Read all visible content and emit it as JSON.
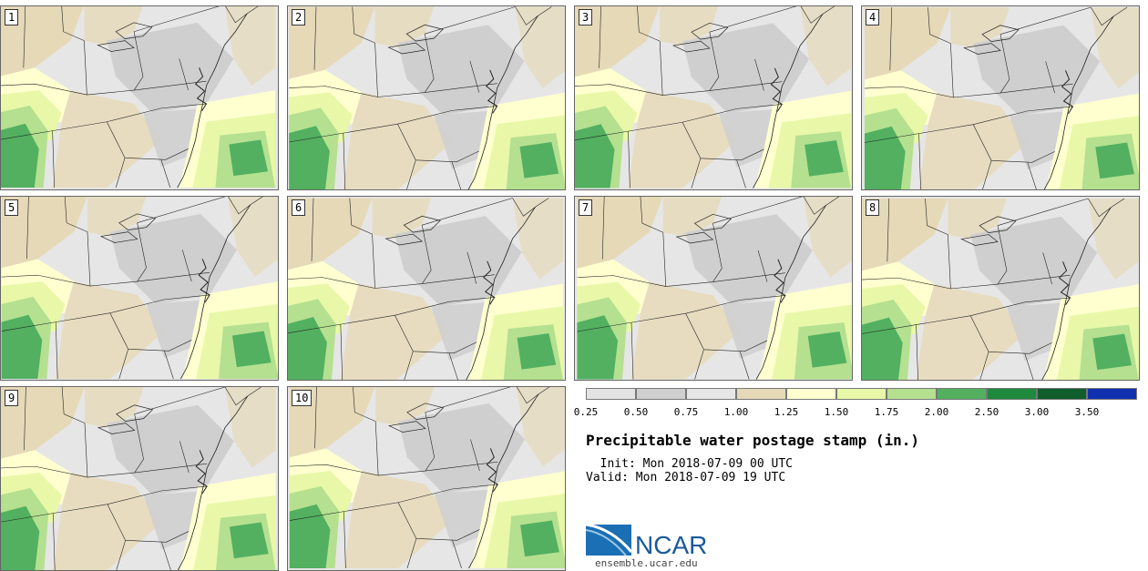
{
  "panels": [
    {
      "label": "1"
    },
    {
      "label": "2"
    },
    {
      "label": "3"
    },
    {
      "label": "4"
    },
    {
      "label": "5"
    },
    {
      "label": "6"
    },
    {
      "label": "7"
    },
    {
      "label": "8"
    },
    {
      "label": "9"
    },
    {
      "label": "10"
    }
  ],
  "colorbar": {
    "colors": [
      "#e3e3e3",
      "#cfcfcf",
      "#e6e6e6",
      "#e6d9b8",
      "#ffffd0",
      "#e8f8a8",
      "#b4e090",
      "#52b060",
      "#1e8a3e",
      "#0f5e2c",
      "#1030b0"
    ],
    "ticks": [
      "0.25",
      "0.50",
      "0.75",
      "1.00",
      "1.25",
      "1.50",
      "1.75",
      "2.00",
      "2.50",
      "3.00",
      "3.50"
    ]
  },
  "title": "Precipitable water postage stamp (in.)",
  "init_text": "  Init: Mon 2018-07-09 00 UTC",
  "valid_text": "Valid: Mon 2018-07-09 19 UTC",
  "logo": {
    "wordmark": "NCAR",
    "url": "ensemble.ucar.edu",
    "brand_color": "#1a5a9a"
  },
  "colors": {
    "field_gray": "#cfcfcf",
    "field_light_gray": "#e6e6e6",
    "field_tan": "#e6d9b8",
    "field_pale_yellow": "#ffffd0",
    "field_light_green": "#e8f8a8",
    "field_green": "#b4e090",
    "field_dark_green": "#52b060",
    "field_darkest_green": "#1e8a3e",
    "boundary": "#222222"
  }
}
